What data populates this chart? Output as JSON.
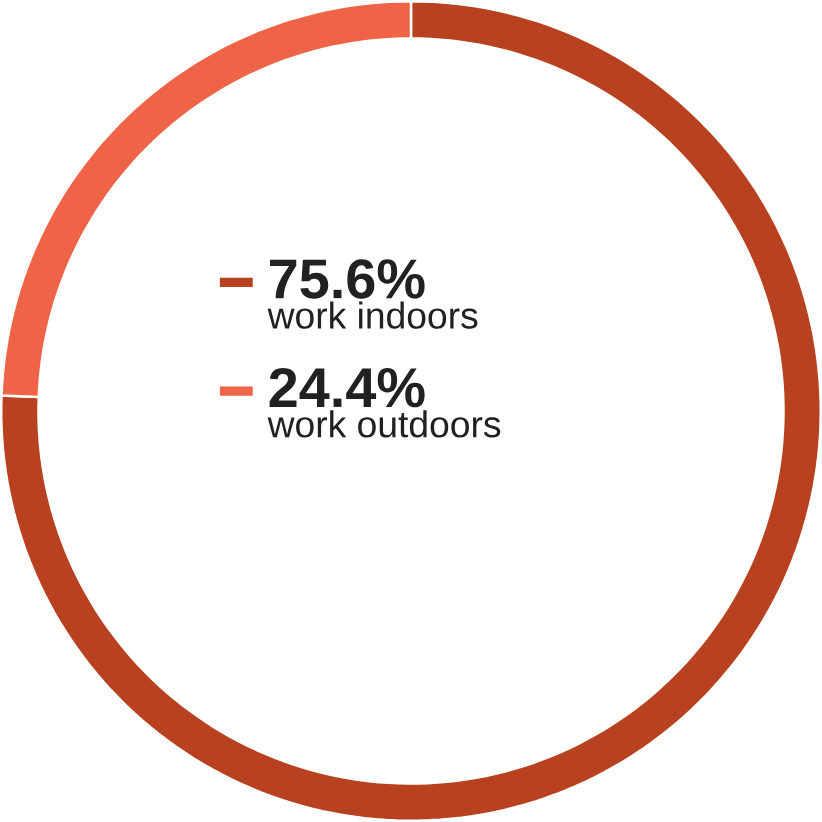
{
  "chart_data": {
    "type": "donut",
    "categories": [
      "work indoors",
      "work outdoors"
    ],
    "values": [
      75.6,
      24.4
    ],
    "colors": [
      "#b8411f",
      "#ef6347"
    ],
    "value_labels": [
      "75.6%",
      "24.4%"
    ],
    "legend": "center"
  }
}
